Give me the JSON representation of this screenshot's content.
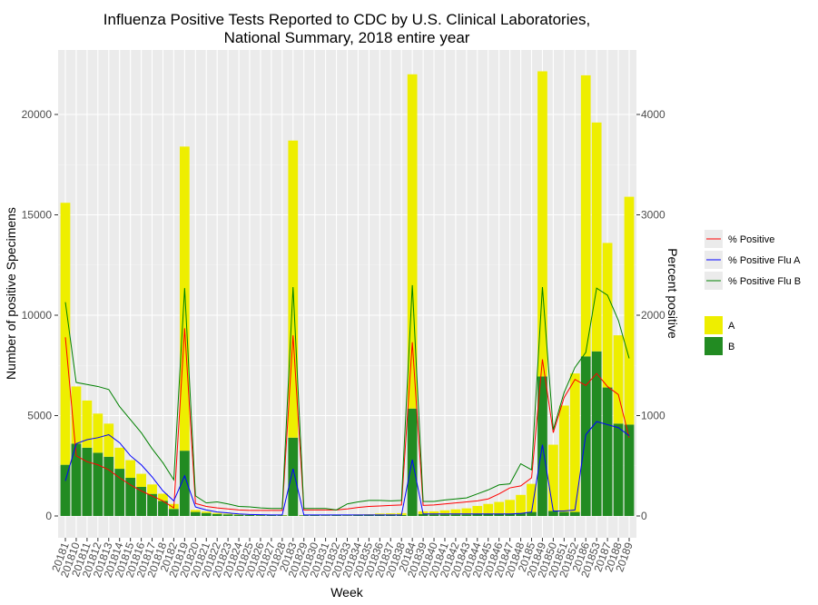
{
  "chart_data": {
    "type": "bar",
    "title_line1": "Influenza Positive Tests Reported to CDC by U.S. Clinical Laboratories,",
    "title_line2": "National Summary, 2018 entire year",
    "xlabel": "Week",
    "ylabel": "Number of positive Specimens",
    "ylabel_right": "Percent positive",
    "ylim": [
      0,
      22000
    ],
    "ylim_right": [
      0,
      4400
    ],
    "yticks": [
      0,
      5000,
      10000,
      15000,
      20000
    ],
    "yticks_right": [
      0,
      1000,
      2000,
      3000,
      4000
    ],
    "grid": true,
    "legend_position": "right",
    "categories": [
      "20181",
      "201810",
      "201811",
      "201812",
      "201813",
      "201814",
      "201815",
      "201816",
      "201817",
      "201818",
      "20182",
      "201819",
      "201820",
      "201821",
      "201822",
      "201823",
      "201824",
      "201825",
      "201826",
      "201827",
      "201828",
      "20183",
      "201829",
      "201830",
      "201831",
      "201832",
      "201833",
      "201834",
      "201835",
      "201836",
      "201837",
      "201838",
      "20184",
      "201839",
      "201840",
      "201841",
      "201842",
      "201843",
      "201844",
      "201845",
      "201846",
      "201847",
      "201848",
      "20185",
      "201849",
      "201850",
      "201851",
      "201852",
      "20186",
      "201853",
      "20187",
      "20188",
      "20189"
    ],
    "stack_order": [
      "B",
      "A"
    ],
    "series": [
      {
        "name": "A",
        "kind": "bar",
        "color": "#eeee00",
        "values": [
          13050,
          2850,
          2350,
          1950,
          1650,
          1050,
          880,
          650,
          470,
          360,
          250,
          15150,
          100,
          70,
          50,
          35,
          30,
          25,
          20,
          15,
          15,
          14800,
          10,
          10,
          10,
          10,
          20,
          40,
          50,
          70,
          80,
          90,
          16650,
          130,
          150,
          200,
          250,
          300,
          400,
          500,
          600,
          700,
          900,
          1400,
          15200,
          3300,
          5300,
          6900,
          14000,
          11400,
          7200,
          4400,
          11350
        ]
      },
      {
        "name": "B",
        "kind": "bar",
        "color": "#228b22",
        "values": [
          2550,
          3600,
          3400,
          3150,
          2950,
          2350,
          1900,
          1450,
          1100,
          750,
          350,
          3250,
          200,
          150,
          100,
          80,
          60,
          50,
          40,
          40,
          30,
          3900,
          30,
          30,
          20,
          30,
          20,
          40,
          40,
          50,
          50,
          50,
          5350,
          100,
          80,
          80,
          80,
          80,
          100,
          100,
          100,
          100,
          150,
          200,
          6950,
          250,
          200,
          200,
          7950,
          8200,
          6400,
          4600,
          4550
        ]
      },
      {
        "name": "% Positive",
        "kind": "line",
        "color": "#ff0000",
        "values": [
          1780,
          600,
          540,
          510,
          460,
          380,
          310,
          250,
          200,
          150,
          80,
          1870,
          125,
          95,
          80,
          70,
          60,
          55,
          55,
          55,
          55,
          1800,
          60,
          60,
          60,
          60,
          70,
          85,
          95,
          100,
          105,
          110,
          1730,
          105,
          110,
          120,
          130,
          140,
          150,
          170,
          220,
          280,
          300,
          380,
          1560,
          830,
          1180,
          1360,
          1300,
          1420,
          1290,
          1210,
          780
        ]
      },
      {
        "name": "% Positive Flu A",
        "kind": "line",
        "color": "#0000ff",
        "values": [
          350,
          720,
          760,
          780,
          810,
          730,
          600,
          510,
          390,
          250,
          150,
          400,
          90,
          60,
          40,
          30,
          20,
          15,
          12,
          10,
          10,
          470,
          10,
          10,
          10,
          10,
          10,
          10,
          10,
          10,
          10,
          10,
          560,
          20,
          20,
          20,
          20,
          20,
          20,
          20,
          20,
          20,
          25,
          40,
          710,
          50,
          50,
          60,
          810,
          940,
          910,
          880,
          800
        ]
      },
      {
        "name": "% Positive Flu B",
        "kind": "line",
        "color": "#008000",
        "values": [
          2130,
          1330,
          1310,
          1290,
          1260,
          1090,
          960,
          830,
          670,
          530,
          360,
          2270,
          200,
          130,
          140,
          120,
          95,
          90,
          80,
          75,
          75,
          2280,
          75,
          75,
          75,
          60,
          120,
          140,
          155,
          155,
          150,
          155,
          2300,
          145,
          145,
          160,
          170,
          180,
          220,
          260,
          310,
          320,
          520,
          460,
          2280,
          860,
          1230,
          1480,
          1630,
          2270,
          2200,
          1950,
          1570
        ]
      }
    ]
  },
  "legend": {
    "lines": [
      {
        "label": "% Positive",
        "color": "#ff0000"
      },
      {
        "label": "% Positive Flu A",
        "color": "#0000ff"
      },
      {
        "label": "% Positive Flu B",
        "color": "#008000"
      }
    ],
    "fills": [
      {
        "label": "A",
        "color": "#eeee00"
      },
      {
        "label": "B",
        "color": "#228b22"
      }
    ]
  }
}
